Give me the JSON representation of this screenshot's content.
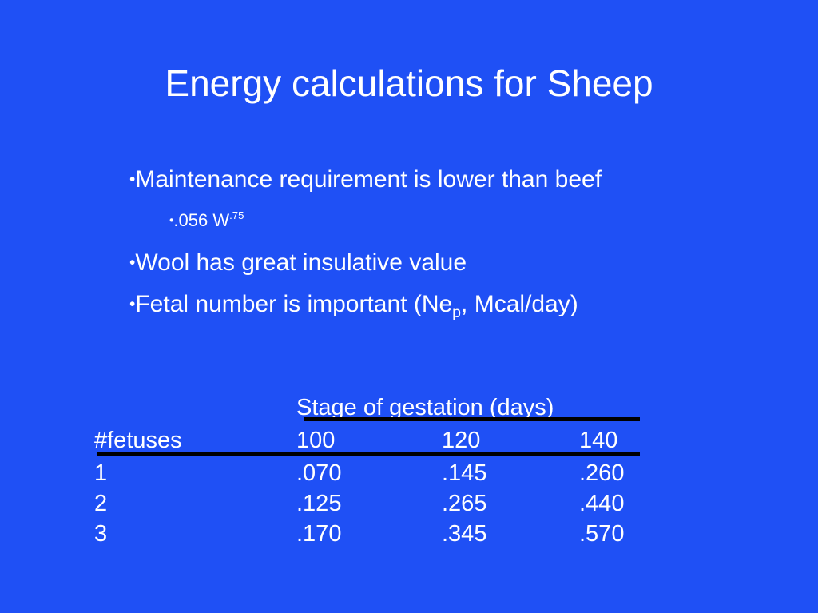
{
  "slide": {
    "title": "Energy calculations for Sheep",
    "bullets": {
      "b1": "Maintenance requirement is lower than beef",
      "b2_base": ".056 W",
      "b2_sup": ".75",
      "b3": "Wool has great insulative value",
      "b4_pre": "Fetal number is important (Ne",
      "b4_sub": "p",
      "b4_post": ", Mcal/day)"
    },
    "bullet_glyph": "•"
  },
  "table": {
    "group_header": "Stage of gestation (days)",
    "row_header": "#fetuses",
    "columns": [
      "100",
      "120",
      "140"
    ],
    "rows": [
      {
        "fetuses": "1",
        "values": [
          ".070",
          ".145",
          ".260"
        ]
      },
      {
        "fetuses": "2",
        "values": [
          ".125",
          ".265",
          ".440"
        ]
      },
      {
        "fetuses": "3",
        "values": [
          ".170",
          ".345",
          ".570"
        ]
      }
    ]
  },
  "colors": {
    "background": "#1f50f5",
    "text": "#ffffff",
    "rules": "#000000"
  }
}
